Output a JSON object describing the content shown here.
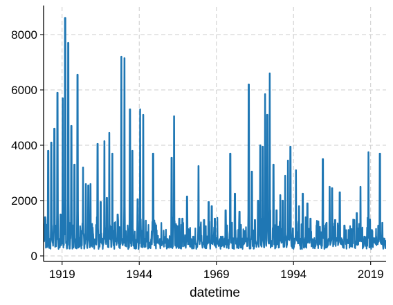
{
  "chart_data": {
    "type": "line",
    "title": "",
    "xlabel": "datetime",
    "ylabel": "",
    "xlim": [
      1913,
      2024
    ],
    "ylim": [
      -200,
      9000
    ],
    "x_ticks": [
      1919,
      1944,
      1969,
      1994,
      2019
    ],
    "x_tick_labels": [
      "1919",
      "1944",
      "1969",
      "1994",
      "2019"
    ],
    "y_ticks": [
      0,
      2000,
      4000,
      6000,
      8000
    ],
    "y_tick_labels": [
      "0",
      "2000",
      "4000",
      "6000",
      "8000"
    ],
    "grid": true,
    "line_color": "#1f77b4",
    "grid_color": "#cccccc",
    "series": [
      {
        "name": "value",
        "baseline": 450,
        "peaks": [
          [
            1913.5,
            1400
          ],
          [
            1914.5,
            3800
          ],
          [
            1915.5,
            4100
          ],
          [
            1916.5,
            4600
          ],
          [
            1917.5,
            5900
          ],
          [
            1918.5,
            1500
          ],
          [
            1919.2,
            5700
          ],
          [
            1920.0,
            8600
          ],
          [
            1921.0,
            7700
          ],
          [
            1922.0,
            4700
          ],
          [
            1923.0,
            3300
          ],
          [
            1924.0,
            6550
          ],
          [
            1925.0,
            900
          ],
          [
            1925.8,
            3200
          ],
          [
            1926.7,
            2600
          ],
          [
            1927.5,
            2550
          ],
          [
            1928.2,
            2600
          ],
          [
            1929.0,
            800
          ],
          [
            1930.5,
            4050
          ],
          [
            1931.5,
            1950
          ],
          [
            1932.7,
            4150
          ],
          [
            1933.5,
            2100
          ],
          [
            1934.3,
            4450
          ],
          [
            1935.3,
            3700
          ],
          [
            1937.0,
            1500
          ],
          [
            1938.2,
            7200
          ],
          [
            1939.2,
            7150
          ],
          [
            1940.2,
            700
          ],
          [
            1941.0,
            5300
          ],
          [
            1941.8,
            3800
          ],
          [
            1943.5,
            2050
          ],
          [
            1944.3,
            5300
          ],
          [
            1945.3,
            5100
          ],
          [
            1946.5,
            700
          ],
          [
            1948.5,
            3700
          ],
          [
            1950.0,
            700
          ],
          [
            1952.5,
            700
          ],
          [
            1954.5,
            3550
          ],
          [
            1955.3,
            5050
          ],
          [
            1957.0,
            1350
          ],
          [
            1958.0,
            1350
          ],
          [
            1959.5,
            2150
          ],
          [
            1961.5,
            700
          ],
          [
            1963.2,
            3250
          ],
          [
            1965.0,
            1300
          ],
          [
            1966.5,
            1950
          ],
          [
            1967.5,
            1800
          ],
          [
            1968.5,
            1350
          ],
          [
            1970.5,
            700
          ],
          [
            1972.0,
            1650
          ],
          [
            1973.5,
            3700
          ],
          [
            1975.0,
            2250
          ],
          [
            1976.5,
            1600
          ],
          [
            1978.2,
            900
          ],
          [
            1979.5,
            6200
          ],
          [
            1980.5,
            3050
          ],
          [
            1981.5,
            1300
          ],
          [
            1982.5,
            2000
          ],
          [
            1983.2,
            4000
          ],
          [
            1984.0,
            3950
          ],
          [
            1984.8,
            5850
          ],
          [
            1985.5,
            5100
          ],
          [
            1986.3,
            6600
          ],
          [
            1987.5,
            3300
          ],
          [
            1988.5,
            1650
          ],
          [
            1989.7,
            2200
          ],
          [
            1990.5,
            2000
          ],
          [
            1991.3,
            2900
          ],
          [
            1992.2,
            3450
          ],
          [
            1993.0,
            3950
          ],
          [
            1993.8,
            1000
          ],
          [
            1994.8,
            3100
          ],
          [
            1995.8,
            1800
          ],
          [
            1997.0,
            2250
          ],
          [
            1998.5,
            1900
          ],
          [
            1999.5,
            1350
          ],
          [
            2001.5,
            1100
          ],
          [
            2003.5,
            3500
          ],
          [
            2004.7,
            1200
          ],
          [
            2005.7,
            2500
          ],
          [
            2006.5,
            2450
          ],
          [
            2007.5,
            1300
          ],
          [
            2009.0,
            2300
          ],
          [
            2010.5,
            1100
          ],
          [
            2012.0,
            850
          ],
          [
            2013.5,
            1100
          ],
          [
            2014.5,
            1550
          ],
          [
            2015.7,
            2500
          ],
          [
            2017.0,
            700
          ],
          [
            2018.3,
            3750
          ],
          [
            2019.5,
            800
          ],
          [
            2020.8,
            700
          ],
          [
            2022.0,
            3700
          ],
          [
            2022.8,
            1200
          ]
        ]
      }
    ]
  }
}
